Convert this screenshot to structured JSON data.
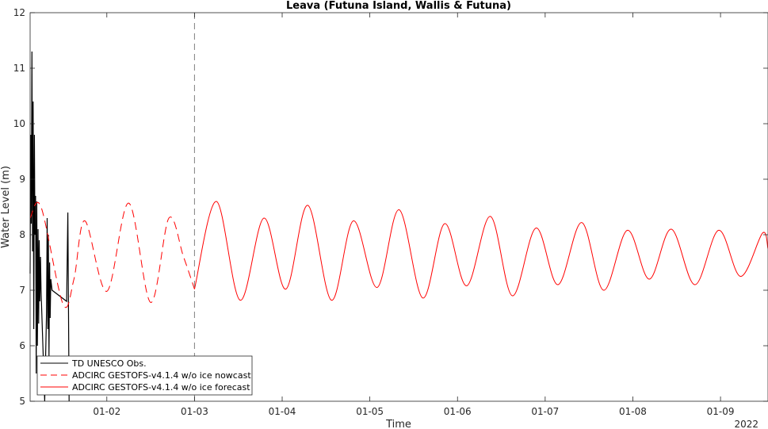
{
  "chart_data": {
    "type": "line",
    "title": "Leava (Futuna Island, Wallis & Futuna)",
    "xlabel": "Time",
    "ylabel": "Water Level (m)",
    "year_label": "2022",
    "x_unit": "days (January 2022)",
    "xlim": [
      "2022-01-01 03:00",
      "2022-01-09 13:00"
    ],
    "ylim": [
      5,
      12
    ],
    "yticks": [
      5,
      6,
      7,
      8,
      9,
      10,
      11,
      12
    ],
    "xticks": [
      {
        "x": "2022-01-02",
        "label": "01-02"
      },
      {
        "x": "2022-01-03",
        "label": "01-03"
      },
      {
        "x": "2022-01-04",
        "label": "01-04"
      },
      {
        "x": "2022-01-05",
        "label": "01-05"
      },
      {
        "x": "2022-01-06",
        "label": "01-06"
      },
      {
        "x": "2022-01-07",
        "label": "01-07"
      },
      {
        "x": "2022-01-08",
        "label": "01-08"
      },
      {
        "x": "2022-01-09",
        "label": "01-09"
      }
    ],
    "vline": {
      "x": "2022-01-03",
      "style": "dashed"
    },
    "grid": false,
    "legend_position": "bottom-left",
    "series": [
      {
        "name": "TD UNESCO Obs.",
        "color": "#000000",
        "style": "solid",
        "x": [
          "01-01 03:00",
          "01-01 03:10",
          "01-01 03:20",
          "01-01 03:30",
          "01-01 03:40",
          "01-01 03:50",
          "01-01 04:00",
          "01-01 04:10",
          "01-01 04:20",
          "01-01 04:30",
          "01-01 04:40",
          "01-01 04:50",
          "01-01 05:00",
          "01-01 05:10",
          "01-01 05:20",
          "01-01 05:30",
          "01-01 05:40",
          "01-01 05:50",
          "01-01 06:00",
          "01-01 07:00",
          "01-01 07:30",
          "01-01 07:40",
          "01-01 07:50",
          "01-01 08:00",
          "01-01 08:10",
          "01-01 08:20",
          "01-01 08:30",
          "01-01 08:40",
          "01-01 09:00",
          "01-01 13:00",
          "01-01 13:20",
          "01-01 13:40"
        ],
        "y": [
          7.3,
          9.8,
          8.2,
          11.3,
          7.7,
          10.4,
          6.3,
          9.8,
          8.0,
          8.7,
          5.5,
          8.6,
          6.0,
          8.1,
          6.4,
          7.9,
          6.8,
          7.6,
          7.0,
          5.0,
          6.6,
          8.3,
          6.3,
          8.0,
          5.8,
          7.5,
          6.5,
          7.2,
          7.0,
          6.8,
          8.4,
          5.0
        ]
      },
      {
        "name": "ADCIRC GESTOFS-v4.1.4 w/o ice nowcast",
        "color": "#ff0000",
        "style": "dashed",
        "x": [
          "01-01 03:00",
          "01-01 06:00",
          "01-01 12:00",
          "01-01 15:00",
          "01-01 18:00",
          "01-02 00:00",
          "01-02 06:00",
          "01-02 12:00",
          "01-02 17:00",
          "01-02 21:00",
          "01-03 00:00"
        ],
        "y": [
          8.3,
          8.5,
          6.75,
          7.2,
          8.25,
          6.98,
          8.57,
          6.78,
          8.3,
          7.6,
          7.02
        ]
      },
      {
        "name": "ADCIRC GESTOFS-v4.1.4 w/o ice forecast",
        "color": "#ff0000",
        "style": "solid",
        "x": [
          "01-03 00:00",
          "01-03 06:00",
          "01-03 12:30",
          "01-03 19:00",
          "01-04 01:00",
          "01-04 07:00",
          "01-04 13:30",
          "01-04 19:30",
          "01-05 02:00",
          "01-05 08:00",
          "01-05 14:30",
          "01-05 20:30",
          "01-06 02:30",
          "01-06 09:00",
          "01-06 15:00",
          "01-06 21:30",
          "01-07 03:30",
          "01-07 10:00",
          "01-07 16:00",
          "01-07 22:30",
          "01-08 04:30",
          "01-08 10:30",
          "01-08 17:00",
          "01-08 23:30",
          "01-09 05:30",
          "01-09 11:30",
          "01-09 13:00"
        ],
        "y": [
          7.02,
          8.6,
          6.82,
          8.3,
          7.02,
          8.53,
          6.82,
          8.25,
          7.05,
          8.45,
          6.86,
          8.2,
          7.08,
          8.33,
          6.9,
          8.12,
          7.1,
          8.22,
          7.0,
          8.08,
          7.2,
          8.1,
          7.1,
          8.08,
          7.25,
          8.03,
          7.75
        ]
      }
    ]
  }
}
